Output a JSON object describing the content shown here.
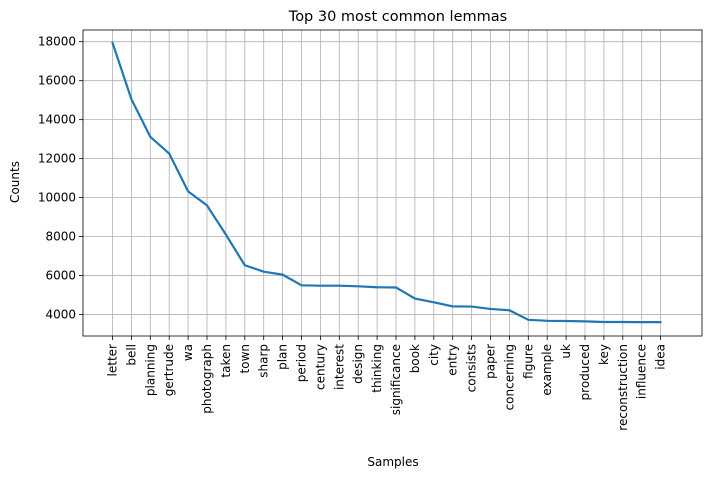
{
  "chart_data": {
    "type": "line",
    "title": "Top 30 most common lemmas",
    "xlabel": "Samples",
    "ylabel": "Counts",
    "ylim": [
      2900,
      18600
    ],
    "yticks": [
      4000,
      6000,
      8000,
      10000,
      12000,
      14000,
      16000,
      18000
    ],
    "grid": true,
    "colors": {
      "line": "#1f77b4",
      "grid": "#b0b0b0",
      "axis": "#000000"
    },
    "categories": [
      "letter",
      "bell",
      "planning",
      "gertrude",
      "wa",
      "photograph",
      "taken",
      "town",
      "sharp",
      "plan",
      "period",
      "century",
      "interest",
      "design",
      "thinking",
      "significance",
      "book",
      "city",
      "entry",
      "consists",
      "paper",
      "concerning",
      "figure",
      "example",
      "uk",
      "produced",
      "key",
      "reconstruction",
      "influence",
      "idea"
    ],
    "series": [
      {
        "values": [
          17950,
          15050,
          13120,
          12260,
          10320,
          9600,
          8100,
          6530,
          6200,
          6050,
          5500,
          5480,
          5480,
          5450,
          5400,
          5390,
          4820,
          4630,
          4420,
          4410,
          4290,
          4220,
          3730,
          3680,
          3670,
          3650,
          3620,
          3620,
          3610,
          3610
        ]
      }
    ]
  }
}
